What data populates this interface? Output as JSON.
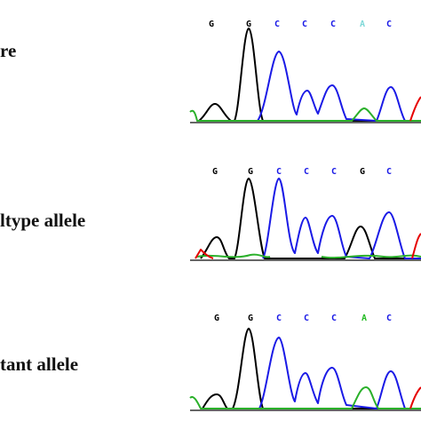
{
  "panels": [
    {
      "label": "re",
      "bases": [
        {
          "letter": "G",
          "color": "#000000"
        },
        {
          "letter": "G",
          "color": "#000000"
        },
        {
          "letter": "C",
          "color": "#1a1ae6"
        },
        {
          "letter": "C",
          "color": "#1a1ae6"
        },
        {
          "letter": "C",
          "color": "#1a1ae6"
        },
        {
          "letter": "A",
          "color": "#7fd8d8"
        },
        {
          "letter": "C",
          "color": "#1a1ae6"
        }
      ]
    },
    {
      "label": "ltype allele",
      "bases": [
        {
          "letter": "G",
          "color": "#000000"
        },
        {
          "letter": "G",
          "color": "#000000"
        },
        {
          "letter": "C",
          "color": "#1a1ae6"
        },
        {
          "letter": "C",
          "color": "#1a1ae6"
        },
        {
          "letter": "C",
          "color": "#1a1ae6"
        },
        {
          "letter": "G",
          "color": "#000000"
        },
        {
          "letter": "C",
          "color": "#1a1ae6"
        }
      ]
    },
    {
      "label": "tant allele",
      "bases": [
        {
          "letter": "G",
          "color": "#000000"
        },
        {
          "letter": "G",
          "color": "#000000"
        },
        {
          "letter": "C",
          "color": "#1a1ae6"
        },
        {
          "letter": "C",
          "color": "#1a1ae6"
        },
        {
          "letter": "C",
          "color": "#1a1ae6"
        },
        {
          "letter": "A",
          "color": "#22bb22"
        },
        {
          "letter": "C",
          "color": "#1a1ae6"
        }
      ]
    }
  ],
  "colors": {
    "G": "#000000",
    "C": "#1a1ae6",
    "A": "#22bb22",
    "T": "#e60000",
    "label": "#111111"
  }
}
